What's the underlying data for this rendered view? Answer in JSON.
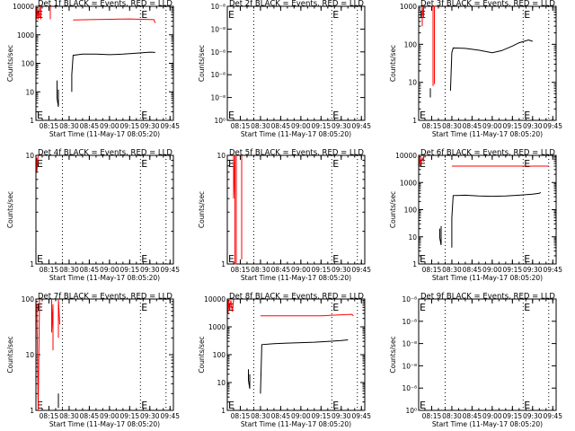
{
  "chart_data": [
    {
      "type": "line",
      "title": "Det 1f BLACK = Events, RED = LLD",
      "xlabel": "Start Time (11-May-17 08:05:20)",
      "ylabel": "Counts/sec",
      "yscale": "log",
      "ylim": [
        1,
        10000
      ],
      "yticks": [
        1,
        10,
        100,
        1000,
        10000
      ],
      "yticklabels": [
        "1",
        "10",
        "100",
        "1000",
        "10000"
      ],
      "xticklabels": [
        "08:15",
        "08:30",
        "08:45",
        "09:00",
        "09:15",
        "09:30",
        "09:45"
      ],
      "markers": [
        "08:25",
        "09:23",
        "09:42"
      ],
      "marker_label": "E",
      "series": [
        {
          "color": "#ff0000",
          "segments": [
            [
              [
                "08:06",
                3500
              ],
              [
                "08:06",
                9000
              ],
              [
                "08:07",
                4000
              ],
              [
                "08:07",
                3500
              ],
              [
                "08:08",
                9500
              ],
              [
                "08:08",
                4500
              ],
              [
                "08:09",
                4200
              ],
              [
                "08:09",
                9800
              ],
              [
                "08:09",
                3500
              ]
            ],
            [
              [
                "08:16",
                9800
              ],
              [
                "08:16",
                10000
              ],
              [
                "08:16",
                3500
              ]
            ],
            [
              [
                "08:33",
                3300
              ],
              [
                "08:45",
                3400
              ],
              [
                "09:00",
                3500
              ],
              [
                "09:15",
                3600
              ],
              [
                "09:24",
                3500
              ],
              [
                "09:33",
                3400
              ],
              [
                "09:34",
                2600
              ]
            ]
          ]
        },
        {
          "color": "#000000",
          "segments": [
            [
              [
                "08:21",
                25
              ],
              [
                "08:21",
                6
              ],
              [
                "08:22",
                3
              ],
              [
                "08:22",
                12
              ],
              [
                "08:22",
                4
              ]
            ],
            [
              [
                "08:32",
                10
              ],
              [
                "08:32",
                40
              ],
              [
                "08:33",
                190
              ],
              [
                "08:40",
                210
              ],
              [
                "08:50",
                210
              ],
              [
                "09:00",
                200
              ],
              [
                "09:10",
                210
              ],
              [
                "09:20",
                225
              ],
              [
                "09:30",
                245
              ],
              [
                "09:34",
                240
              ]
            ]
          ]
        }
      ]
    },
    {
      "type": "line",
      "title": "Det 2f BLACK = Events, RED = LLD",
      "xlabel": "Start Time (11-May-17 08:05:20)",
      "ylabel": "Counts/sec",
      "yscale": "log",
      "ylim": [
        1,
        1.00000005
      ],
      "yticks": [
        1,
        1.00000001,
        1.00000002,
        1.00000003,
        1.00000004,
        1.00000005
      ],
      "yticklabels": [
        "10⁰",
        "10⁻⁸",
        "10⁻⁸",
        "10⁻⁸",
        "10⁻⁸",
        "10⁻⁸"
      ],
      "xticklabels": [
        "08:15",
        "08:30",
        "08:45",
        "09:00",
        "09:15",
        "09:30",
        "09:45"
      ],
      "markers": [
        "08:25",
        "09:23",
        "09:42"
      ],
      "marker_label": "E",
      "series": []
    },
    {
      "type": "line",
      "title": "Det 3f BLACK = Events, RED = LLD",
      "xlabel": "Start Time (11-May-17 08:05:20)",
      "ylabel": "Counts/sec",
      "yscale": "log",
      "ylim": [
        1,
        1000
      ],
      "yticks": [
        1,
        10,
        100,
        1000
      ],
      "yticklabels": [
        "1",
        "10",
        "100",
        "1000"
      ],
      "xticklabels": [
        "08:15",
        "08:30",
        "08:45",
        "09:00",
        "09:15",
        "09:30",
        "09:45"
      ],
      "markers": [
        "08:25",
        "09:23",
        "09:42"
      ],
      "marker_label": "E",
      "series": [
        {
          "color": "#ff0000",
          "segments": [
            [
              [
                "08:08",
                300
              ],
              [
                "08:08",
                1000
              ],
              [
                "08:09",
                500
              ],
              [
                "08:09",
                1000
              ]
            ],
            [
              [
                "08:16",
                8
              ],
              [
                "08:16",
                1000
              ],
              [
                "08:17",
                1000
              ],
              [
                "08:17",
                9
              ]
            ]
          ]
        },
        {
          "color": "#000000",
          "segments": [
            [
              [
                "08:14",
                4
              ],
              [
                "08:14",
                7
              ]
            ],
            [
              [
                "08:29",
                6
              ],
              [
                "08:30",
                60
              ],
              [
                "08:31",
                80
              ],
              [
                "08:40",
                78
              ],
              [
                "08:50",
                70
              ],
              [
                "09:00",
                60
              ],
              [
                "09:07",
                68
              ],
              [
                "09:15",
                90
              ],
              [
                "09:20",
                110
              ],
              [
                "09:27",
                130
              ],
              [
                "09:30",
                120
              ]
            ]
          ]
        }
      ]
    },
    {
      "type": "line",
      "title": "Det 4f BLACK = Events, RED = LLD",
      "xlabel": "Start Time (11-May-17 08:05:20)",
      "ylabel": "Counts/sec",
      "yscale": "log",
      "ylim": [
        1,
        10
      ],
      "yticks": [
        1,
        10
      ],
      "yticklabels": [
        "1",
        "10"
      ],
      "xticklabels": [
        "08:15",
        "08:30",
        "08:45",
        "09:00",
        "09:15",
        "09:30",
        "09:45"
      ],
      "markers": [
        "08:25",
        "09:23",
        "09:42"
      ],
      "marker_label": "E",
      "series": [
        {
          "color": "#ff0000",
          "segments": [
            [
              [
                "08:06",
                9.5
              ],
              [
                "08:06",
                7
              ],
              [
                "08:07",
                10
              ]
            ]
          ]
        }
      ]
    },
    {
      "type": "line",
      "title": "Det 5f BLACK = Events, RED = LLD",
      "xlabel": "Start Time (11-May-17 08:05:20)",
      "ylabel": "Counts/sec",
      "yscale": "log",
      "ylim": [
        1,
        10
      ],
      "yticks": [
        1,
        10
      ],
      "yticklabels": [
        "1",
        "10"
      ],
      "xticklabels": [
        "08:15",
        "08:30",
        "08:45",
        "09:00",
        "09:15",
        "09:30",
        "09:45"
      ],
      "markers": [
        "08:25",
        "09:23",
        "09:42"
      ],
      "marker_label": "E",
      "series": [
        {
          "color": "#ff0000",
          "segments": [
            [
              [
                "08:10",
                10
              ],
              [
                "08:10",
                4
              ],
              [
                "08:11",
                10
              ],
              [
                "08:11",
                1
              ],
              [
                "08:12",
                1
              ],
              [
                "08:12",
                10
              ]
            ],
            [
              [
                "08:16",
                10
              ],
              [
                "08:16",
                1.1
              ]
            ]
          ]
        }
      ]
    },
    {
      "type": "line",
      "title": "Det 6f BLACK = Events, RED = LLD",
      "xlabel": "Start Time (11-May-17 08:05:20)",
      "ylabel": "Counts/sec",
      "yscale": "log",
      "ylim": [
        1,
        10000
      ],
      "yticks": [
        1,
        10,
        100,
        1000,
        10000
      ],
      "yticklabels": [
        "1",
        "10",
        "100",
        "1000",
        "10000"
      ],
      "xticklabels": [
        "08:15",
        "08:30",
        "08:45",
        "09:00",
        "09:15",
        "09:30",
        "09:45"
      ],
      "markers": [
        "08:25",
        "09:23",
        "09:42"
      ],
      "marker_label": "E",
      "series": [
        {
          "color": "#ff0000",
          "segments": [
            [
              [
                "08:06",
                4000
              ],
              [
                "08:06",
                9000
              ],
              [
                "08:07",
                5000
              ],
              [
                "08:08",
                8000
              ],
              [
                "08:09",
                6000
              ],
              [
                "08:09",
                9500
              ]
            ],
            [
              [
                "08:30",
                4000
              ],
              [
                "08:45",
                4000
              ],
              [
                "09:00",
                4000
              ],
              [
                "09:15",
                4000
              ],
              [
                "09:30",
                4000
              ],
              [
                "09:42",
                4000
              ]
            ]
          ]
        },
        {
          "color": "#000000",
          "segments": [
            [
              [
                "08:21",
                20
              ],
              [
                "08:21",
                9
              ],
              [
                "08:22",
                5
              ],
              [
                "08:22",
                25
              ],
              [
                "08:22",
                6
              ]
            ],
            [
              [
                "08:30",
                4
              ],
              [
                "08:30",
                50
              ],
              [
                "08:31",
                330
              ],
              [
                "08:40",
                340
              ],
              [
                "08:50",
                320
              ],
              [
                "09:00",
                310
              ],
              [
                "09:10",
                320
              ],
              [
                "09:20",
                340
              ],
              [
                "09:30",
                370
              ],
              [
                "09:35",
                400
              ],
              [
                "09:36",
                430
              ]
            ]
          ]
        }
      ]
    },
    {
      "type": "line",
      "title": "Det 7f BLACK = Events, RED = LLD",
      "xlabel": "Start Time (11-May-17 08:05:20)",
      "ylabel": "Counts/sec",
      "yscale": "log",
      "ylim": [
        1,
        100
      ],
      "yticks": [
        1,
        10,
        100
      ],
      "yticklabels": [
        "1",
        "10",
        "100"
      ],
      "xticklabels": [
        "08:15",
        "08:30",
        "08:45",
        "09:00",
        "09:15",
        "09:30",
        "09:45"
      ],
      "markers": [
        "08:25",
        "09:23",
        "09:42"
      ],
      "marker_label": "E",
      "series": [
        {
          "color": "#ff0000",
          "segments": [
            [
              [
                "08:06",
                80
              ],
              [
                "08:07",
                1
              ],
              [
                "08:08",
                100
              ],
              [
                "08:08",
                60
              ]
            ],
            [
              [
                "08:17",
                100
              ],
              [
                "08:17",
                25
              ],
              [
                "08:18",
                80
              ],
              [
                "08:18",
                12
              ]
            ],
            [
              [
                "08:22",
                20
              ],
              [
                "08:22",
                100
              ],
              [
                "08:23",
                35
              ]
            ]
          ]
        },
        {
          "color": "#000000",
          "segments": [
            [
              [
                "08:22",
                2
              ],
              [
                "08:22",
                1.1
              ]
            ]
          ]
        }
      ]
    },
    {
      "type": "line",
      "title": "Det 8f BLACK = Events, RED = LLD",
      "xlabel": "Start Time (11-May-17 08:05:20)",
      "ylabel": "Counts/sec",
      "yscale": "log",
      "ylim": [
        1,
        10000
      ],
      "yticks": [
        1,
        10,
        100,
        1000,
        10000
      ],
      "yticklabels": [
        "1",
        "10",
        "100",
        "1000",
        "10000"
      ],
      "xticklabels": [
        "08:15",
        "08:30",
        "08:45",
        "09:00",
        "09:15",
        "09:30",
        "09:45"
      ],
      "markers": [
        "08:25",
        "09:23",
        "09:42"
      ],
      "marker_label": "E",
      "series": [
        {
          "color": "#ff0000",
          "segments": [
            [
              [
                "08:06",
                3000
              ],
              [
                "08:06",
                9000
              ],
              [
                "08:07",
                4000
              ],
              [
                "08:08",
                9000
              ],
              [
                "08:09",
                3500
              ],
              [
                "08:10",
                9500
              ]
            ],
            [
              [
                "08:30",
                2500
              ],
              [
                "08:45",
                2500
              ],
              [
                "09:00",
                2500
              ],
              [
                "09:15",
                2500
              ],
              [
                "09:23",
                2600
              ],
              [
                "09:30",
                2700
              ],
              [
                "09:38",
                2800
              ],
              [
                "09:39",
                2500
              ]
            ]
          ]
        },
        {
          "color": "#000000",
          "segments": [
            [
              [
                "08:21",
                30
              ],
              [
                "08:21",
                12
              ],
              [
                "08:22",
                6
              ],
              [
                "08:22",
                20
              ]
            ],
            [
              [
                "08:30",
                4
              ],
              [
                "08:31",
                230
              ],
              [
                "08:40",
                250
              ],
              [
                "08:50",
                260
              ],
              [
                "09:00",
                270
              ],
              [
                "09:10",
                280
              ],
              [
                "09:20",
                300
              ],
              [
                "09:30",
                320
              ],
              [
                "09:35",
                340
              ]
            ]
          ]
        }
      ]
    },
    {
      "type": "line",
      "title": "Det 9f BLACK = Events, RED = LLD",
      "xlabel": "Start Time (11-May-17 08:05:20)",
      "ylabel": "Counts/sec",
      "yscale": "log",
      "ylim": [
        1,
        1.00000005
      ],
      "yticks": [
        1,
        1.00000001,
        1.00000002,
        1.00000003,
        1.00000004,
        1.00000005
      ],
      "yticklabels": [
        "10⁰",
        "10⁻⁸",
        "10⁻⁸",
        "10⁻⁸",
        "10⁻⁸",
        "10⁻⁸"
      ],
      "xticklabels": [
        "08:15",
        "08:30",
        "08:45",
        "09:00",
        "09:15",
        "09:30",
        "09:45"
      ],
      "markers": [
        "08:25",
        "09:23",
        "09:42"
      ],
      "marker_label": "E",
      "series": []
    }
  ]
}
